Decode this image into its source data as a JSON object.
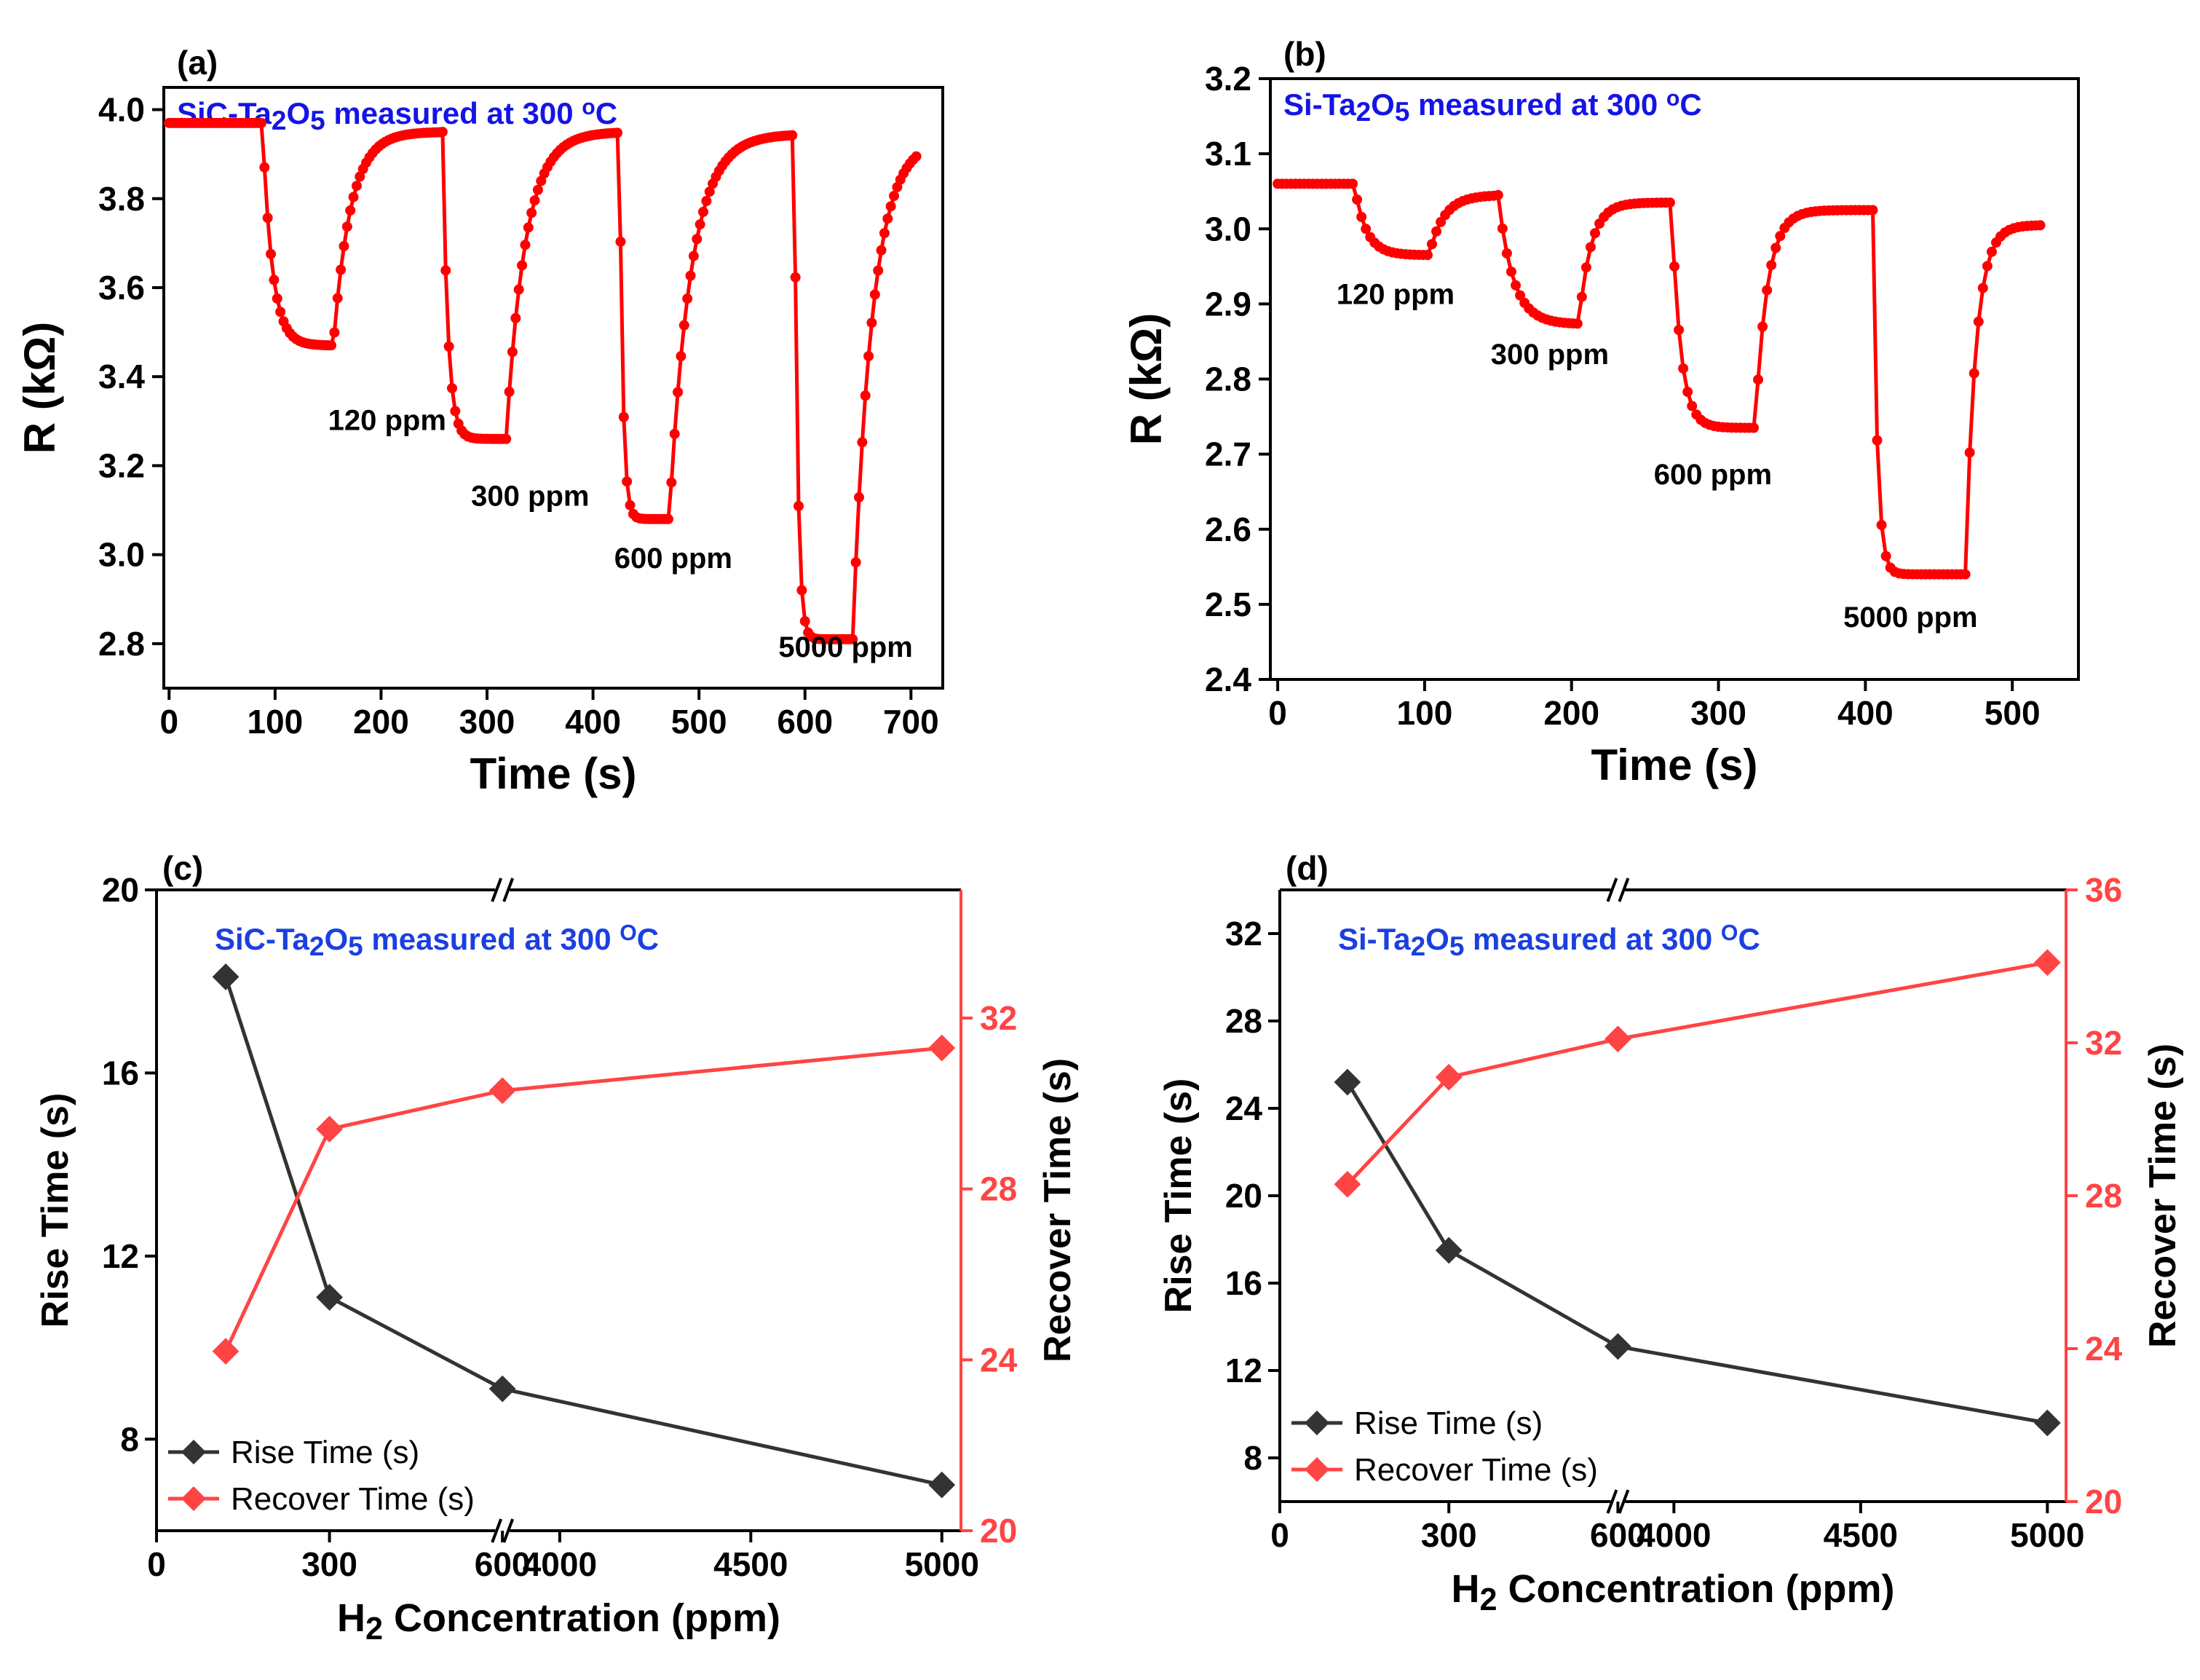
{
  "colors": {
    "red": "#ff0000",
    "blue": "#1414e6",
    "title_blue_cd": "#1b3fe0",
    "rise": "#333333",
    "recover": "#ff4444"
  },
  "chart_data": [
    {
      "id": "a",
      "type": "line",
      "panel_label": "(a)",
      "title_parts": [
        "SiC-Ta",
        "2",
        "O",
        "5",
        "  measured at 300 ",
        "o",
        "C"
      ],
      "xlabel": "Time (s)",
      "ylabel": "R (kΩ)",
      "xlim": [
        -5,
        730
      ],
      "ylim": [
        2.7,
        4.05
      ],
      "xticks": [
        0,
        100,
        200,
        300,
        400,
        500,
        600,
        700
      ],
      "yticks": [
        2.8,
        3.0,
        3.2,
        3.4,
        3.6,
        3.8,
        4.0
      ],
      "ytick_labels": [
        "2.8",
        "3.0",
        "3.2",
        "3.4",
        "3.6",
        "3.8",
        "4.0"
      ],
      "baseline_start": 3.97,
      "events": [
        {
          "on": 88,
          "off": 155,
          "low": 3.47,
          "recover_to": 3.95,
          "tau_fall": 9,
          "tau_rise": 16
        },
        {
          "on": 258,
          "off": 318,
          "low": 3.26,
          "recover_to": 3.95,
          "tau_fall": 5,
          "tau_rise": 18
        },
        {
          "on": 425,
          "off": 472,
          "low": 3.08,
          "recover_to": 3.945,
          "tau_fall": 3,
          "tau_rise": 20
        },
        {
          "on": 590,
          "off": 645,
          "low": 2.81,
          "recover_to": 3.935,
          "tau_fall": 3,
          "tau_rise": 18
        }
      ],
      "x_end": 705,
      "annotations": [
        {
          "text": "120 ppm",
          "x": 150,
          "y": 3.28
        },
        {
          "text": "300 ppm",
          "x": 285,
          "y": 3.11
        },
        {
          "text": "600 ppm",
          "x": 420,
          "y": 2.97
        },
        {
          "text": "5000 ppm",
          "x": 575,
          "y": 2.77
        }
      ]
    },
    {
      "id": "b",
      "type": "line",
      "panel_label": "(b)",
      "title_parts": [
        "Si-Ta",
        "2",
        "O",
        "5",
        "  measured at 300 ",
        "o",
        "C"
      ],
      "xlabel": "Time (s)",
      "ylabel": "R (kΩ)",
      "xlim": [
        -5,
        545
      ],
      "ylim": [
        2.4,
        3.2
      ],
      "xticks": [
        0,
        100,
        200,
        300,
        400,
        500
      ],
      "yticks": [
        2.4,
        2.5,
        2.6,
        2.7,
        2.8,
        2.9,
        3.0,
        3.1,
        3.2
      ],
      "ytick_labels": [
        "2.4",
        "2.5",
        "2.6",
        "2.7",
        "2.8",
        "2.9",
        "3.0",
        "3.1",
        "3.2"
      ],
      "baseline_start": 3.06,
      "events": [
        {
          "on": 52,
          "off": 103,
          "low": 2.965,
          "recover_to": 3.045,
          "tau_fall": 8,
          "tau_rise": 10
        },
        {
          "on": 150,
          "off": 205,
          "low": 2.873,
          "recover_to": 3.035,
          "tau_fall": 10,
          "tau_rise": 8
        },
        {
          "on": 268,
          "off": 325,
          "low": 2.735,
          "recover_to": 3.025,
          "tau_fall": 6,
          "tau_rise": 8
        },
        {
          "on": 405,
          "off": 468,
          "low": 2.54,
          "recover_to": 3.005,
          "tau_fall": 3,
          "tau_rise": 7
        }
      ],
      "x_end": 520,
      "annotations": [
        {
          "text": "120 ppm",
          "x": 40,
          "y": 2.9
        },
        {
          "text": "300 ppm",
          "x": 145,
          "y": 2.82
        },
        {
          "text": "600 ppm",
          "x": 256,
          "y": 2.66
        },
        {
          "text": "5000 ppm",
          "x": 385,
          "y": 2.47
        }
      ]
    },
    {
      "id": "c",
      "type": "line",
      "panel_label": "(c)",
      "title_parts": [
        "SiC-Ta",
        "2",
        "O",
        "5",
        " measured at 300 ",
        "O",
        "C"
      ],
      "xlabel_parts": [
        "H",
        "2",
        " Concentration (ppm)"
      ],
      "ylabel": "Rise Time (s)",
      "y2label": "Recover Time (s)",
      "x_segments": [
        [
          0,
          600
        ],
        [
          3850,
          5050
        ]
      ],
      "x_segment_fraction": 0.43,
      "xticks": [
        0,
        300,
        600,
        4000,
        4500,
        5000
      ],
      "ylim": [
        6,
        20
      ],
      "yticks": [
        8,
        12,
        16,
        20
      ],
      "y2lim": [
        20,
        35
      ],
      "y2ticks": [
        20,
        24,
        28,
        32
      ],
      "x": [
        120,
        300,
        600,
        5000
      ],
      "series": [
        {
          "name": "Rise Time (s)",
          "axis": "left",
          "values": [
            18.1,
            11.1,
            9.1,
            7.0
          ]
        },
        {
          "name": "Recover Time (s)",
          "axis": "right",
          "values": [
            24.2,
            29.4,
            30.3,
            31.3
          ]
        }
      ],
      "legend": "bottom-left"
    },
    {
      "id": "d",
      "type": "line",
      "panel_label": "(d)",
      "title_parts": [
        "Si-Ta",
        "2",
        "O",
        "5",
        " measured at 300 ",
        "O",
        "C"
      ],
      "xlabel_parts": [
        "H",
        "2",
        " Concentration (ppm)"
      ],
      "ylabel": "Rise Time (s)",
      "y2label": "Recover Time (s)",
      "x_segments": [
        [
          0,
          600
        ],
        [
          3850,
          5050
        ]
      ],
      "x_segment_fraction": 0.43,
      "xticks": [
        0,
        300,
        600,
        4000,
        4500,
        5000
      ],
      "ylim": [
        6,
        34
      ],
      "yticks": [
        8,
        12,
        16,
        20,
        24,
        28,
        32
      ],
      "y2lim": [
        20,
        36
      ],
      "y2ticks": [
        20,
        24,
        28,
        32,
        36
      ],
      "x": [
        120,
        300,
        600,
        5000
      ],
      "series": [
        {
          "name": "Rise Time (s)",
          "axis": "left",
          "values": [
            25.2,
            17.5,
            13.1,
            9.6
          ]
        },
        {
          "name": "Recover Time (s)",
          "axis": "right",
          "values": [
            28.3,
            31.1,
            32.1,
            34.1
          ]
        }
      ],
      "legend": "bottom-left"
    }
  ]
}
